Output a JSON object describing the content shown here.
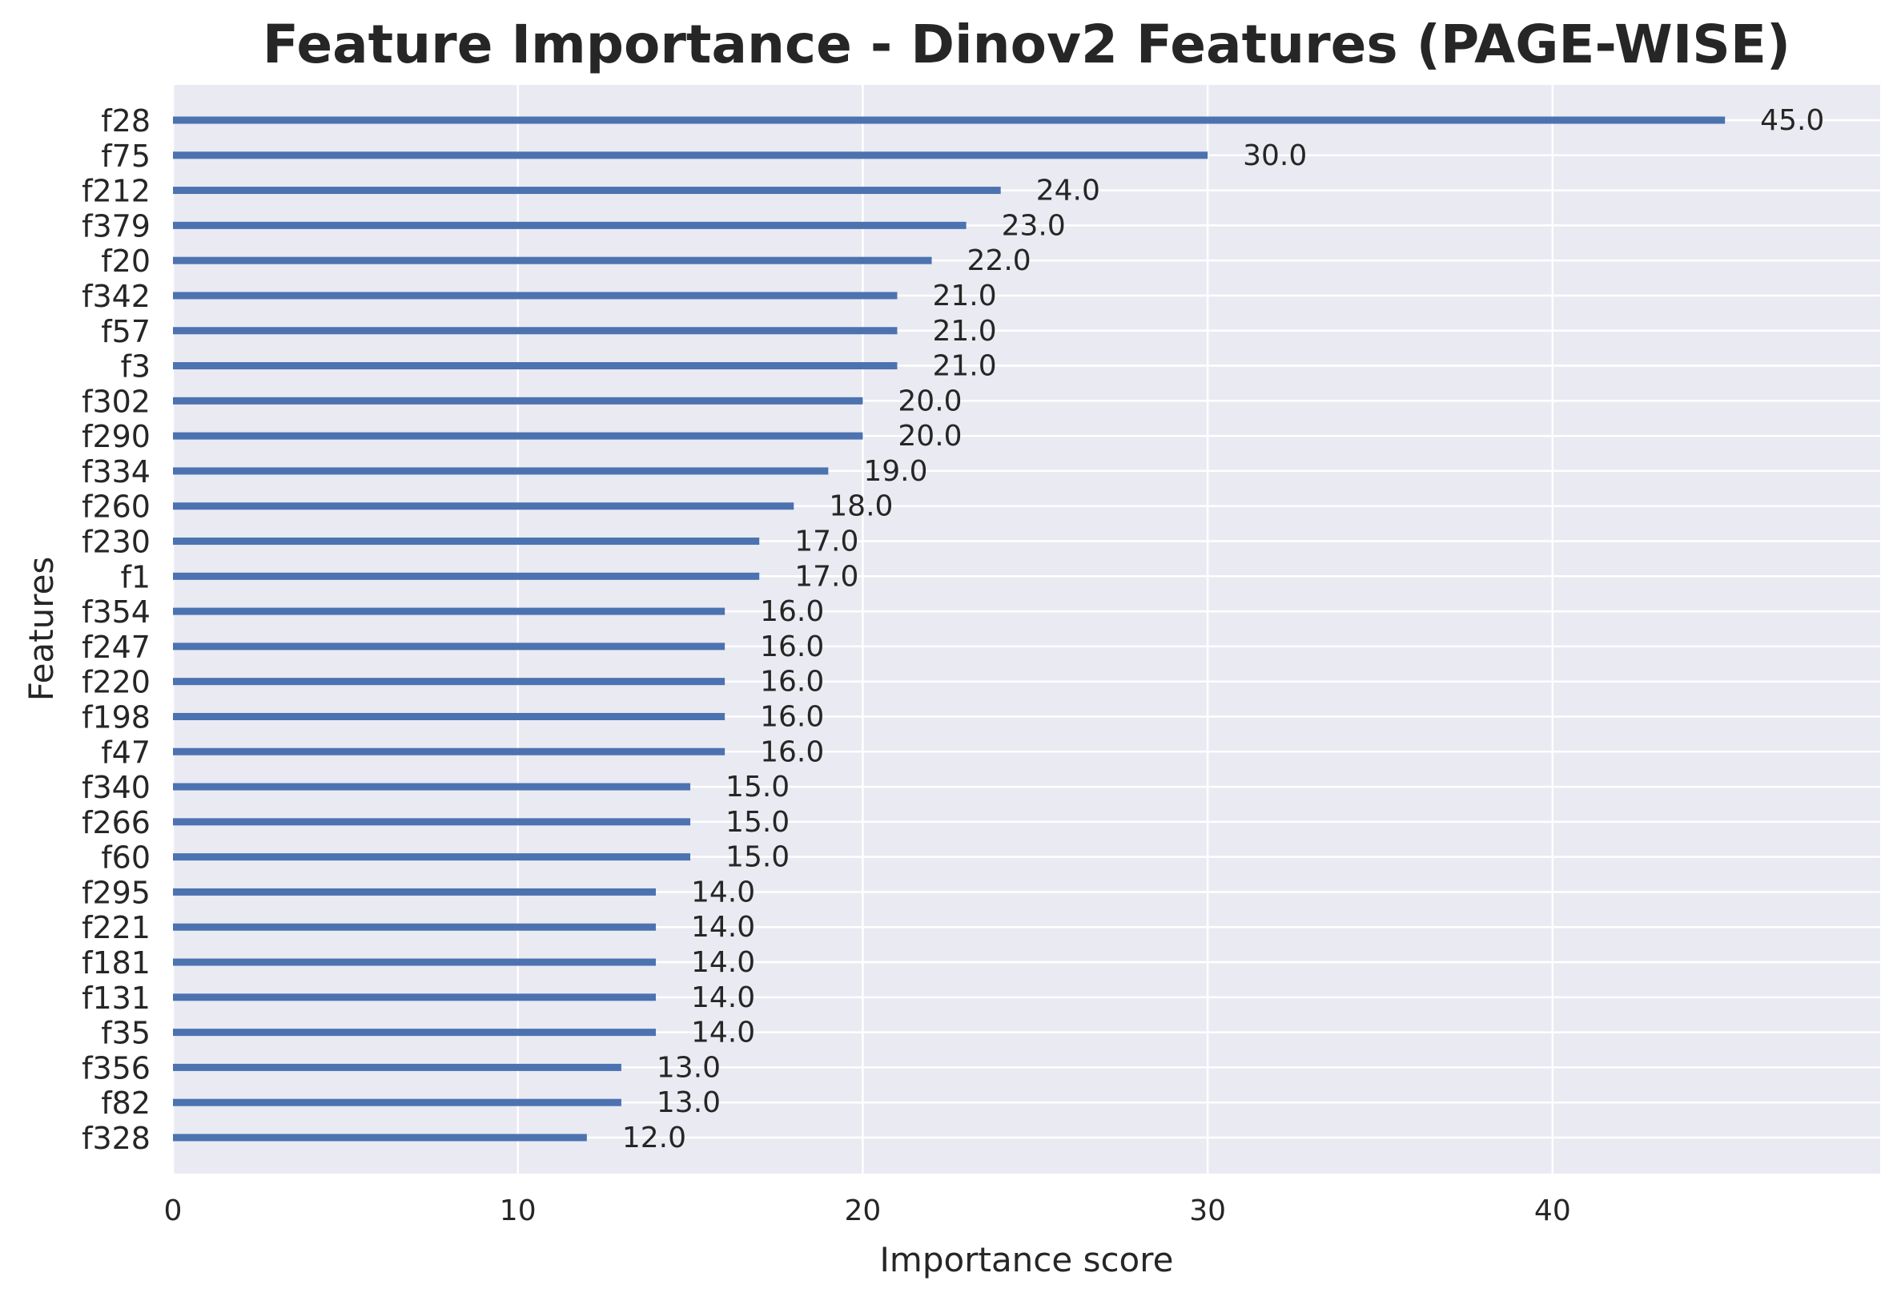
{
  "chart_data": {
    "type": "bar",
    "orientation": "horizontal",
    "title": "Feature Importance - Dinov2 Features (PAGE-WISE)",
    "xlabel": "Importance score",
    "ylabel": "Features",
    "categories": [
      "f28",
      "f75",
      "f212",
      "f379",
      "f20",
      "f342",
      "f57",
      "f3",
      "f302",
      "f290",
      "f334",
      "f260",
      "f230",
      "f1",
      "f354",
      "f247",
      "f220",
      "f198",
      "f47",
      "f340",
      "f266",
      "f60",
      "f295",
      "f221",
      "f181",
      "f131",
      "f35",
      "f356",
      "f82",
      "f328"
    ],
    "values": [
      45,
      30,
      24,
      23,
      22,
      21,
      21,
      21,
      20,
      20,
      19,
      18,
      17,
      17,
      16,
      16,
      16,
      16,
      16,
      15,
      15,
      15,
      14,
      14,
      14,
      14,
      14,
      13,
      13,
      12
    ],
    "value_labels": [
      "45.0",
      "30.0",
      "24.0",
      "23.0",
      "22.0",
      "21.0",
      "21.0",
      "21.0",
      "20.0",
      "20.0",
      "19.0",
      "18.0",
      "17.0",
      "17.0",
      "16.0",
      "16.0",
      "16.0",
      "16.0",
      "16.0",
      "15.0",
      "15.0",
      "15.0",
      "14.0",
      "14.0",
      "14.0",
      "14.0",
      "14.0",
      "13.0",
      "13.0",
      "12.0"
    ],
    "xticks": [
      0,
      10,
      20,
      30,
      40
    ],
    "xlim": [
      0,
      49.5
    ],
    "grid": true,
    "legend": "none",
    "colors": {
      "bar": "#4c72b0",
      "plot_background": "#eaeaf2",
      "grid": "#ffffff",
      "text": "#262626"
    }
  }
}
